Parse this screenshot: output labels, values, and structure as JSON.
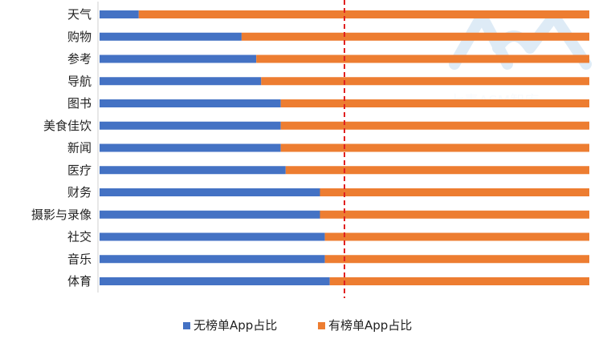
{
  "chart_data": {
    "type": "bar",
    "orientation": "horizontal",
    "stacked": true,
    "percent": true,
    "categories": [
      "天气",
      "购物",
      "参考",
      "导航",
      "图书",
      "美食佳饮",
      "新闻",
      "医疗",
      "财务",
      "摄影与录像",
      "社交",
      "音乐",
      "体育"
    ],
    "series": [
      {
        "name": "无榜单App占比",
        "color": "#4472c4",
        "values": [
          0.08,
          0.29,
          0.32,
          0.33,
          0.37,
          0.37,
          0.37,
          0.38,
          0.45,
          0.45,
          0.46,
          0.46,
          0.47
        ]
      },
      {
        "name": "有榜单App占比",
        "color": "#ed7d31",
        "values": [
          0.92,
          0.71,
          0.68,
          0.67,
          0.63,
          0.63,
          0.63,
          0.62,
          0.55,
          0.55,
          0.54,
          0.54,
          0.53
        ]
      }
    ],
    "xlim": [
      0,
      1
    ],
    "reference_line": {
      "value": 0.5,
      "style": "dashed",
      "color": "#e02020"
    },
    "legend": {
      "position": "bottom"
    },
    "grid": false
  },
  "watermark": {
    "logo_text": "AM",
    "text": "七麦ASM智库"
  }
}
